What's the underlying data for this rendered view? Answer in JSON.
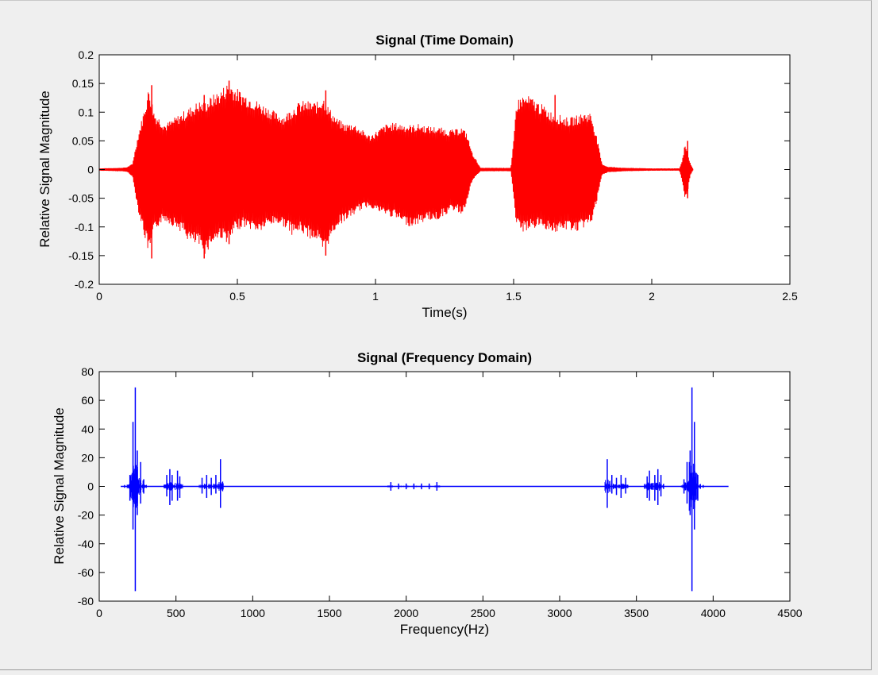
{
  "colors": {
    "figure_background": "#efefef",
    "axes_background": "#ffffff",
    "time_series": "#ff0000",
    "freq_series": "#0000ff"
  },
  "chart_data": [
    {
      "type": "line",
      "title": "Signal (Time Domain)",
      "xlabel": "Time(s)",
      "ylabel": "Relative Signal Magnitude",
      "xlim": [
        0,
        2.5
      ],
      "ylim": [
        -0.2,
        0.2
      ],
      "xticks": [
        0,
        0.5,
        1,
        1.5,
        2,
        2.5
      ],
      "xtick_labels": [
        "0",
        "0.5",
        "1",
        "1.5",
        "2",
        "2.5"
      ],
      "yticks": [
        0.2,
        0.15,
        0.1,
        0.05,
        0,
        -0.05,
        -0.1,
        -0.15,
        -0.2
      ],
      "ytick_labels": [
        "0.2",
        "0.15",
        "0.1",
        "0.05",
        "0",
        "-0.05",
        "-0.1",
        "-0.15",
        "-0.2"
      ],
      "grid": false,
      "color": "#ff0000",
      "envelope": {
        "x": [
          0,
          0.08,
          0.1,
          0.12,
          0.14,
          0.16,
          0.18,
          0.2,
          0.22,
          0.24,
          0.27,
          0.3,
          0.33,
          0.36,
          0.38,
          0.41,
          0.44,
          0.47,
          0.49,
          0.52,
          0.55,
          0.58,
          0.61,
          0.64,
          0.67,
          0.7,
          0.73,
          0.76,
          0.79,
          0.81,
          0.83,
          0.86,
          0.89,
          0.92,
          0.95,
          0.98,
          1.01,
          1.04,
          1.07,
          1.1,
          1.13,
          1.16,
          1.19,
          1.22,
          1.25,
          1.27,
          1.29,
          1.31,
          1.33,
          1.35,
          1.38,
          1.45,
          1.49,
          1.5,
          1.51,
          1.53,
          1.56,
          1.6,
          1.64,
          1.67,
          1.7,
          1.73,
          1.76,
          1.78,
          1.8,
          1.82,
          1.84,
          1.9,
          2.0,
          2.1,
          2.11,
          2.12,
          2.13,
          2.14,
          2.15
        ],
        "upper": [
          0.002,
          0.003,
          0.004,
          0.01,
          0.06,
          0.1,
          0.145,
          0.1,
          0.09,
          0.08,
          0.09,
          0.1,
          0.11,
          0.12,
          0.118,
          0.13,
          0.14,
          0.155,
          0.145,
          0.135,
          0.128,
          0.118,
          0.11,
          0.1,
          0.095,
          0.11,
          0.12,
          0.12,
          0.118,
          0.13,
          0.11,
          0.09,
          0.08,
          0.082,
          0.07,
          0.06,
          0.07,
          0.08,
          0.082,
          0.08,
          0.078,
          0.08,
          0.076,
          0.075,
          0.072,
          0.07,
          0.07,
          0.075,
          0.065,
          0.03,
          0.003,
          0.003,
          0.003,
          0.05,
          0.12,
          0.13,
          0.128,
          0.115,
          0.1,
          0.095,
          0.09,
          0.095,
          0.1,
          0.1,
          0.06,
          0.01,
          0.005,
          0.003,
          0.002,
          0.002,
          0.015,
          0.045,
          0.03,
          0.01,
          0.001
        ],
        "lower": [
          -0.002,
          -0.003,
          -0.004,
          -0.012,
          -0.07,
          -0.11,
          -0.15,
          -0.11,
          -0.095,
          -0.09,
          -0.1,
          -0.11,
          -0.13,
          -0.135,
          -0.15,
          -0.13,
          -0.12,
          -0.13,
          -0.11,
          -0.1,
          -0.105,
          -0.11,
          -0.1,
          -0.095,
          -0.1,
          -0.115,
          -0.11,
          -0.12,
          -0.125,
          -0.15,
          -0.13,
          -0.1,
          -0.09,
          -0.08,
          -0.07,
          -0.065,
          -0.075,
          -0.08,
          -0.085,
          -0.095,
          -0.1,
          -0.095,
          -0.088,
          -0.09,
          -0.08,
          -0.075,
          -0.07,
          -0.08,
          -0.06,
          -0.02,
          -0.003,
          -0.003,
          -0.003,
          -0.05,
          -0.1,
          -0.11,
          -0.105,
          -0.1,
          -0.11,
          -0.11,
          -0.105,
          -0.11,
          -0.1,
          -0.095,
          -0.06,
          -0.01,
          -0.005,
          -0.003,
          -0.002,
          -0.002,
          -0.02,
          -0.05,
          -0.04,
          -0.01,
          -0.001
        ]
      },
      "spikes": [
        [
          0.19,
          0.147,
          -0.155
        ],
        [
          0.38,
          0.13,
          -0.155
        ],
        [
          0.47,
          0.155,
          -0.13
        ],
        [
          0.82,
          0.138,
          -0.15
        ],
        [
          1.65,
          0.13,
          -0.1
        ],
        [
          2.13,
          0.05,
          -0.05
        ]
      ]
    },
    {
      "type": "line",
      "title": "Signal (Frequency Domain)",
      "xlabel": "Frequency(Hz)",
      "ylabel": "Relative Signal Magnitude",
      "xlim": [
        0,
        4500
      ],
      "ylim": [
        -80,
        80
      ],
      "xticks": [
        0,
        500,
        1000,
        1500,
        2000,
        2500,
        3000,
        3500,
        4000,
        4500
      ],
      "xtick_labels": [
        "0",
        "500",
        "1000",
        "1500",
        "2000",
        "2500",
        "3000",
        "3500",
        "4000",
        "4500"
      ],
      "yticks": [
        80,
        60,
        40,
        20,
        0,
        -20,
        -40,
        -60,
        -80
      ],
      "ytick_labels": [
        "80",
        "60",
        "40",
        "20",
        "0",
        "-20",
        "-40",
        "-60",
        "-80"
      ],
      "grid": false,
      "color": "#0000ff",
      "baseline": {
        "x_range": [
          140,
          4100
        ],
        "amplitude": 0.5
      },
      "spikes": [
        [
          165,
          1,
          -1
        ],
        [
          200,
          8,
          -10
        ],
        [
          220,
          45,
          -30
        ],
        [
          235,
          69,
          -73
        ],
        [
          248,
          25,
          -20
        ],
        [
          270,
          17,
          -12
        ],
        [
          290,
          5,
          -5
        ],
        [
          440,
          8,
          -7
        ],
        [
          460,
          12,
          -13
        ],
        [
          475,
          8,
          -10
        ],
        [
          510,
          11,
          -10
        ],
        [
          525,
          7,
          -8
        ],
        [
          670,
          6,
          -5
        ],
        [
          700,
          8,
          -8
        ],
        [
          730,
          6,
          -6
        ],
        [
          760,
          8,
          -5
        ],
        [
          790,
          19,
          -15
        ],
        [
          1900,
          3,
          -3
        ],
        [
          1950,
          2,
          -2
        ],
        [
          2000,
          2,
          -2
        ],
        [
          2050,
          2,
          -2
        ],
        [
          2100,
          2,
          -2
        ],
        [
          2150,
          2,
          -2
        ],
        [
          2200,
          3,
          -3
        ],
        [
          3310,
          19,
          -15
        ],
        [
          3340,
          8,
          -5
        ],
        [
          3370,
          6,
          -6
        ],
        [
          3400,
          8,
          -8
        ],
        [
          3430,
          6,
          -5
        ],
        [
          3570,
          7,
          -8
        ],
        [
          3585,
          11,
          -10
        ],
        [
          3620,
          8,
          -10
        ],
        [
          3640,
          12,
          -13
        ],
        [
          3660,
          8,
          -7
        ],
        [
          3810,
          5,
          -5
        ],
        [
          3830,
          17,
          -12
        ],
        [
          3850,
          25,
          -20
        ],
        [
          3862,
          69,
          -73
        ],
        [
          3878,
          45,
          -30
        ],
        [
          3900,
          8,
          -10
        ],
        [
          3935,
          1,
          -1
        ]
      ]
    }
  ]
}
